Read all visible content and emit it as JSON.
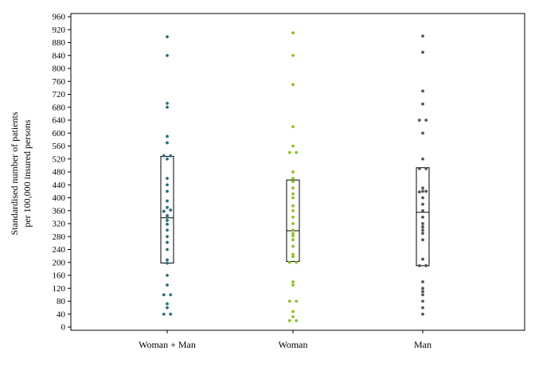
{
  "chart_data": {
    "type": "scatter",
    "subtype": "strip plot with box (interquartile range and median)",
    "ylabel": [
      "Standardised number of patients",
      "per 100,000 insured persons"
    ],
    "ylim": [
      0,
      960
    ],
    "yticks": [
      0,
      40,
      80,
      120,
      160,
      200,
      240,
      280,
      320,
      360,
      400,
      440,
      480,
      520,
      560,
      600,
      640,
      680,
      720,
      760,
      800,
      840,
      880,
      920,
      960
    ],
    "grid": false,
    "categories": [
      "Woman + Man",
      "Woman",
      "Man"
    ],
    "series": [
      {
        "name": "Woman + Man",
        "color": "#2a6f7a",
        "box": {
          "q1": 198,
          "median": 338,
          "q3": 528
        },
        "values": [
          40,
          40,
          60,
          72,
          100,
          100,
          130,
          160,
          198,
          208,
          240,
          262,
          280,
          300,
          318,
          330,
          340,
          345,
          358,
          362,
          370,
          390,
          420,
          440,
          460,
          520,
          530,
          530,
          570,
          590,
          680,
          692,
          840,
          898
        ]
      },
      {
        "name": "Woman",
        "color": "#8dc21f",
        "box": {
          "q1": 203,
          "median": 298,
          "q3": 455
        },
        "values": [
          20,
          20,
          32,
          48,
          80,
          80,
          130,
          140,
          200,
          200,
          218,
          225,
          250,
          270,
          282,
          290,
          300,
          320,
          340,
          360,
          375,
          400,
          412,
          430,
          450,
          460,
          480,
          540,
          540,
          560,
          620,
          750,
          840,
          910
        ]
      },
      {
        "name": "Man",
        "color": "#555555",
        "box": {
          "q1": 190,
          "median": 355,
          "q3": 493
        },
        "values": [
          40,
          60,
          80,
          100,
          110,
          120,
          140,
          190,
          190,
          210,
          270,
          290,
          300,
          310,
          320,
          340,
          360,
          380,
          400,
          418,
          420,
          420,
          430,
          490,
          490,
          520,
          600,
          640,
          640,
          690,
          730,
          850,
          900
        ]
      }
    ]
  }
}
